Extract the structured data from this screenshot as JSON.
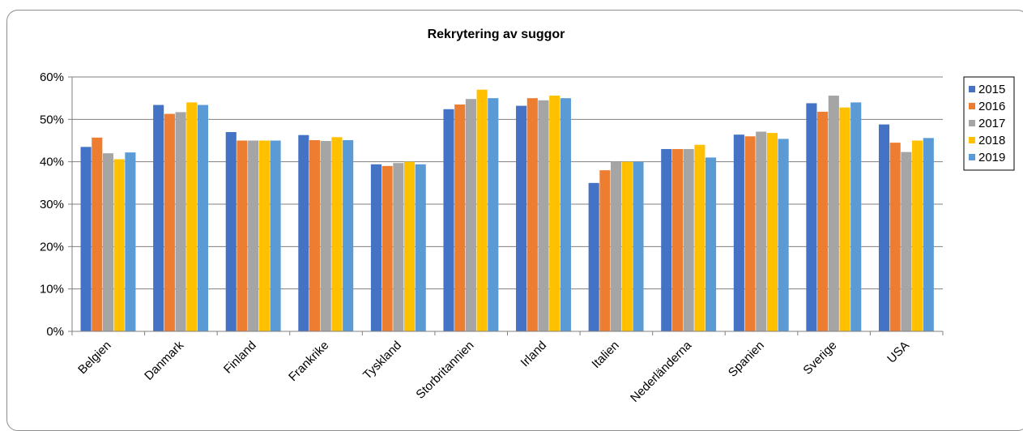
{
  "chart_data": {
    "type": "bar",
    "title": "Rekrytering av suggor",
    "xlabel": "",
    "ylabel": "",
    "ylim": [
      0,
      0.6
    ],
    "yticks": [
      "0%",
      "10%",
      "20%",
      "30%",
      "40%",
      "50%",
      "60%"
    ],
    "grid": true,
    "legend_position": "right",
    "categories": [
      "Belgien",
      "Danmark",
      "Finland",
      "Frankrike",
      "Tyskland",
      "Storbritannien",
      "Irland",
      "Italien",
      "Nederländerna",
      "Spanien",
      "Sverige",
      "USA"
    ],
    "series": [
      {
        "name": "2015",
        "color": "#4472c4",
        "values": [
          0.435,
          0.534,
          0.47,
          0.463,
          0.394,
          0.524,
          0.532,
          0.35,
          0.43,
          0.464,
          0.538,
          0.488
        ]
      },
      {
        "name": "2016",
        "color": "#ed7d31",
        "values": [
          0.457,
          0.513,
          0.45,
          0.451,
          0.39,
          0.535,
          0.55,
          0.38,
          0.43,
          0.46,
          0.518,
          0.445
        ]
      },
      {
        "name": "2017",
        "color": "#a5a5a5",
        "values": [
          0.42,
          0.517,
          0.45,
          0.449,
          0.397,
          0.548,
          0.545,
          0.4,
          0.43,
          0.471,
          0.556,
          0.423
        ]
      },
      {
        "name": "2018",
        "color": "#ffc000",
        "values": [
          0.406,
          0.54,
          0.45,
          0.458,
          0.4,
          0.57,
          0.556,
          0.4,
          0.44,
          0.468,
          0.528,
          0.45
        ]
      },
      {
        "name": "2019",
        "color": "#5b9bd5",
        "values": [
          0.422,
          0.534,
          0.45,
          0.451,
          0.394,
          0.55,
          0.55,
          0.4,
          0.41,
          0.454,
          0.54,
          0.456
        ]
      }
    ]
  }
}
